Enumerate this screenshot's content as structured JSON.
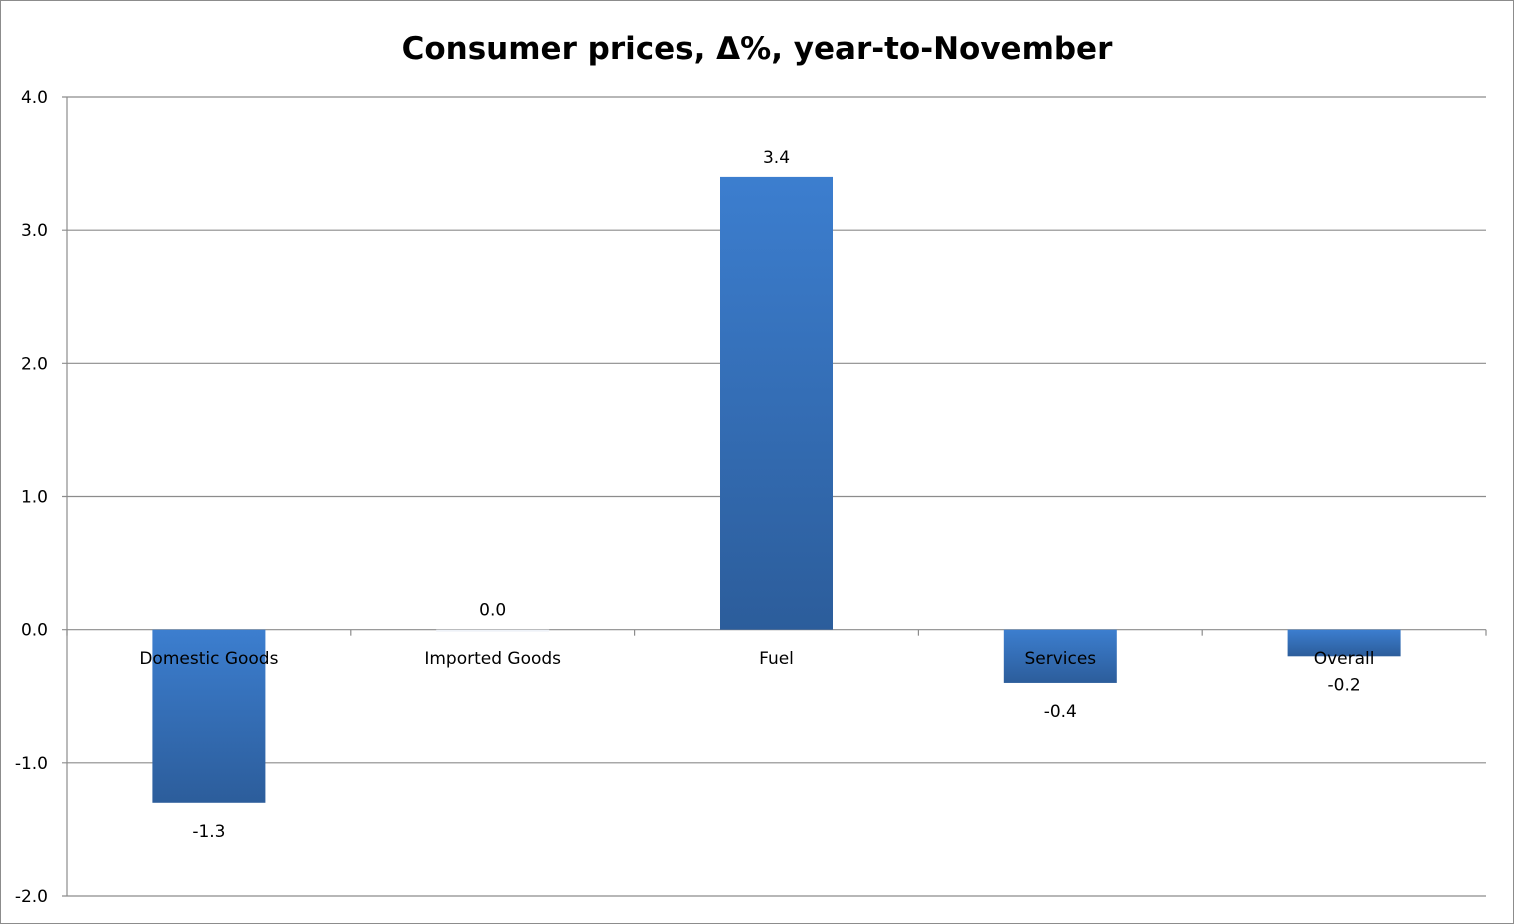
{
  "chart_data": {
    "type": "bar",
    "title": "Consumer prices, Δ%, year-to-November",
    "xlabel": "",
    "ylabel": "",
    "categories": [
      "Domestic Goods",
      "Imported Goods",
      "Fuel",
      "Services",
      "Overall"
    ],
    "values": [
      -1.3,
      0.0,
      3.4,
      -0.4,
      -0.2
    ],
    "data_labels": [
      "-1.3",
      "0.0",
      "3.4",
      "-0.4",
      "-0.2"
    ],
    "ylim": [
      -2.0,
      4.0
    ],
    "yticks": [
      4.0,
      3.0,
      2.0,
      1.0,
      0.0,
      -1.0,
      -2.0
    ],
    "ytick_labels": [
      "4.0",
      "3.0",
      "2.0",
      "1.0",
      "0.0",
      "-1.0",
      "-2.0"
    ],
    "grid": true,
    "legend": "none",
    "colors": {
      "bar_top": "#3c7ecf",
      "bar_bottom": "#2c5d9b",
      "grid": "#8c8c8c"
    }
  }
}
